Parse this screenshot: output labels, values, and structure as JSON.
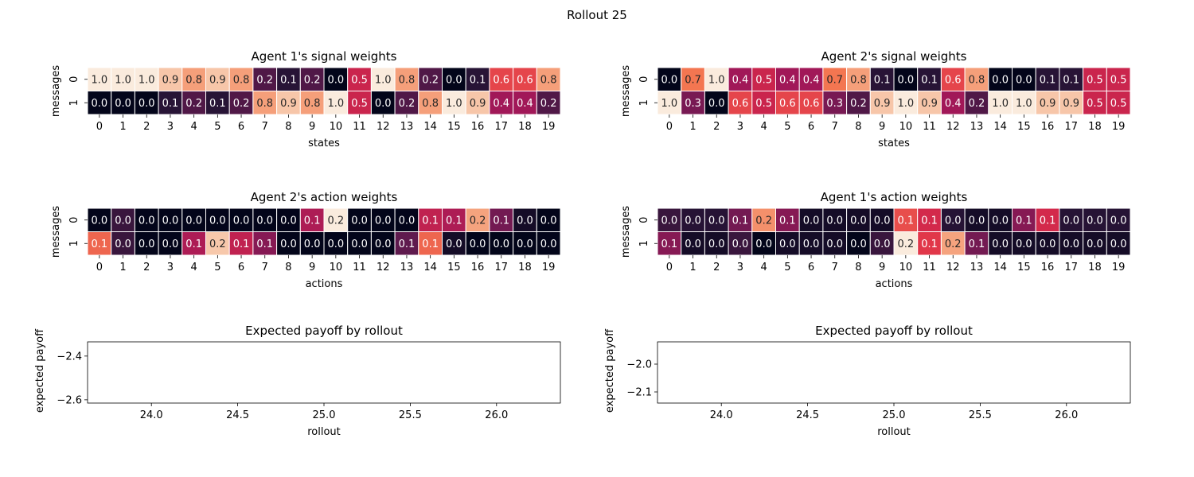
{
  "figure": {
    "title": "Rollout 25"
  },
  "chart_data": [
    {
      "type": "heatmap",
      "title": "Agent 1's signal weights",
      "xlabel": "states",
      "ylabel": "messages",
      "x": [
        "0",
        "1",
        "2",
        "3",
        "4",
        "5",
        "6",
        "7",
        "8",
        "9",
        "10",
        "11",
        "12",
        "13",
        "14",
        "15",
        "16",
        "17",
        "18",
        "19"
      ],
      "y": [
        "0",
        "1"
      ],
      "values": [
        [
          1.0,
          1.0,
          1.0,
          0.9,
          0.8,
          0.9,
          0.8,
          0.2,
          0.1,
          0.2,
          0.0,
          0.5,
          1.0,
          0.8,
          0.2,
          0.0,
          0.1,
          0.6,
          0.6,
          0.8
        ],
        [
          0.0,
          0.0,
          0.0,
          0.1,
          0.2,
          0.1,
          0.2,
          0.8,
          0.9,
          0.8,
          1.0,
          0.5,
          0.0,
          0.2,
          0.8,
          1.0,
          0.9,
          0.4,
          0.4,
          0.2
        ]
      ],
      "vmin": 0,
      "vmax": 1,
      "colormap": "rocket"
    },
    {
      "type": "heatmap",
      "title": "Agent 2's signal weights",
      "xlabel": "states",
      "ylabel": "messages",
      "x": [
        "0",
        "1",
        "2",
        "3",
        "4",
        "5",
        "6",
        "7",
        "8",
        "9",
        "10",
        "11",
        "12",
        "13",
        "14",
        "15",
        "16",
        "17",
        "18",
        "19"
      ],
      "y": [
        "0",
        "1"
      ],
      "values": [
        [
          0.0,
          0.7,
          1.0,
          0.4,
          0.5,
          0.4,
          0.4,
          0.7,
          0.8,
          0.1,
          0.0,
          0.1,
          0.6,
          0.8,
          0.0,
          0.0,
          0.1,
          0.1,
          0.5,
          0.5
        ],
        [
          1.0,
          0.3,
          0.0,
          0.6,
          0.5,
          0.6,
          0.6,
          0.3,
          0.2,
          0.9,
          1.0,
          0.9,
          0.4,
          0.2,
          1.0,
          1.0,
          0.9,
          0.9,
          0.5,
          0.5
        ]
      ],
      "vmin": 0,
      "vmax": 1,
      "colormap": "rocket"
    },
    {
      "type": "heatmap",
      "title": "Agent 2's action weights",
      "xlabel": "actions",
      "ylabel": "messages",
      "x": [
        "0",
        "1",
        "2",
        "3",
        "4",
        "5",
        "6",
        "7",
        "8",
        "9",
        "10",
        "11",
        "12",
        "13",
        "14",
        "15",
        "16",
        "17",
        "18",
        "19"
      ],
      "y": [
        "0",
        "1"
      ],
      "values": [
        [
          0.0,
          0.0,
          0.0,
          0.0,
          0.0,
          0.0,
          0.0,
          0.0,
          0.0,
          0.1,
          0.2,
          0.0,
          0.0,
          0.0,
          0.1,
          0.1,
          0.2,
          0.1,
          0.0,
          0.0
        ],
        [
          0.1,
          0.0,
          0.0,
          0.0,
          0.1,
          0.2,
          0.1,
          0.1,
          0.0,
          0.0,
          0.0,
          0.0,
          0.0,
          0.1,
          0.1,
          0.0,
          0.0,
          0.0,
          0.0,
          0.0
        ]
      ],
      "color_values": [
        [
          0.0,
          0.03,
          0.0,
          0.0,
          0.0,
          0.0,
          0.0,
          0.0,
          0.0,
          0.09,
          0.21,
          0.0,
          0.0,
          0.0,
          0.1,
          0.09,
          0.17,
          0.06,
          0.01,
          0.0
        ],
        [
          0.14,
          0.03,
          0.0,
          0.0,
          0.09,
          0.19,
          0.1,
          0.07,
          0.0,
          0.0,
          0.0,
          0.0,
          0.0,
          0.05,
          0.14,
          0.01,
          0.0,
          0.0,
          0.0,
          0.0
        ]
      ],
      "vmin": 0,
      "vmax": 0.21,
      "colormap": "rocket"
    },
    {
      "type": "heatmap",
      "title": "Agent 1's action weights",
      "xlabel": "actions",
      "ylabel": "messages",
      "x": [
        "0",
        "1",
        "2",
        "3",
        "4",
        "5",
        "6",
        "7",
        "8",
        "9",
        "10",
        "11",
        "12",
        "13",
        "14",
        "15",
        "16",
        "17",
        "18",
        "19"
      ],
      "y": [
        "0",
        "1"
      ],
      "values": [
        [
          0.0,
          0.0,
          0.0,
          0.1,
          0.2,
          0.1,
          0.0,
          0.0,
          0.0,
          0.0,
          0.1,
          0.1,
          0.0,
          0.0,
          0.0,
          0.1,
          0.1,
          0.0,
          0.0,
          0.0
        ],
        [
          0.1,
          0.0,
          0.0,
          0.0,
          0.0,
          0.0,
          0.0,
          0.0,
          0.0,
          0.0,
          0.2,
          0.1,
          0.2,
          0.1,
          0.0,
          0.0,
          0.0,
          0.0,
          0.0,
          0.0
        ]
      ],
      "color_values": [
        [
          0.03,
          0.02,
          0.02,
          0.06,
          0.16,
          0.07,
          0.01,
          0.01,
          0.01,
          0.01,
          0.13,
          0.11,
          0.02,
          0.01,
          0.01,
          0.07,
          0.11,
          0.02,
          0.02,
          0.02
        ],
        [
          0.07,
          0.01,
          0.01,
          0.03,
          0.0,
          0.01,
          0.01,
          0.01,
          0.0,
          0.03,
          0.21,
          0.12,
          0.17,
          0.06,
          0.01,
          0.01,
          0.01,
          0.01,
          0.01,
          0.01
        ]
      ],
      "vmin": 0,
      "vmax": 0.21,
      "colormap": "rocket"
    },
    {
      "type": "line",
      "title": "Expected payoff by rollout",
      "xlabel": "rollout",
      "ylabel": "expected payoff",
      "xlim": [
        23.63,
        26.37
      ],
      "ylim": [
        -2.615,
        -2.335
      ],
      "xticks": [
        24.0,
        24.5,
        25.0,
        25.5,
        26.0
      ],
      "xticklabels": [
        "24.0",
        "24.5",
        "25.0",
        "25.5",
        "26.0"
      ],
      "yticks": [
        -2.4,
        -2.6
      ],
      "yticklabels": [
        "−2.4",
        "−2.6"
      ],
      "series": []
    },
    {
      "type": "line",
      "title": "Expected payoff by rollout",
      "xlabel": "rollout",
      "ylabel": "expected payoff",
      "xlim": [
        23.63,
        26.37
      ],
      "ylim": [
        -2.14,
        -1.92
      ],
      "xticks": [
        24.0,
        24.5,
        25.0,
        25.5,
        26.0
      ],
      "xticklabels": [
        "24.0",
        "24.5",
        "25.0",
        "25.5",
        "26.0"
      ],
      "yticks": [
        -2.0,
        -2.1
      ],
      "yticklabels": [
        "−2.0",
        "−2.1"
      ],
      "series": []
    }
  ]
}
